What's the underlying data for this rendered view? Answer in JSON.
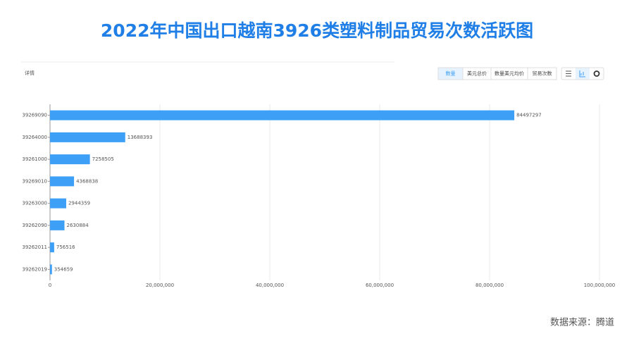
{
  "chart_data": {
    "type": "bar",
    "title": "2022年中国出口越南3926类塑料制品贸易次数活跃图",
    "panel_title": "详情",
    "buttons": [
      "数量",
      "美元总价",
      "数量美元均价",
      "贸易次数"
    ],
    "source": "数据来源：腾道",
    "categories": [
      "39269090",
      "39264000",
      "39261000",
      "39269010",
      "39263000",
      "39262090",
      "39262011",
      "39262019"
    ],
    "values": [
      84497297,
      13688393,
      7258505,
      4368838,
      2944359,
      2630884,
      756516,
      354659
    ],
    "color": "#3d9ff5",
    "xlim": [
      0,
      100000000
    ],
    "xticks": [
      0,
      {
        "value": 20000000,
        "label": "20,000,000"
      },
      {
        "value": 40000000,
        "label": "40,000,000"
      },
      {
        "value": 60000000,
        "label": "60,000,000"
      },
      {
        "value": 80000000,
        "label": "80,000,000"
      },
      {
        "value": 100000000,
        "label": "100,000,000"
      }
    ],
    "grid": true
  }
}
